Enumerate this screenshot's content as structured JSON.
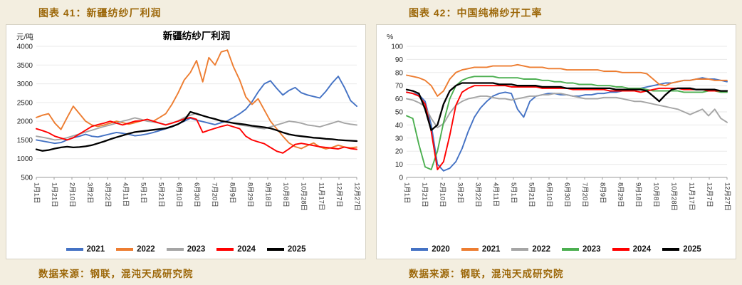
{
  "page": {
    "background": "#F3EEE0",
    "accent_text_color": "#9C6708"
  },
  "figures": [
    {
      "caption": "图表 41：新疆纺纱厂利润",
      "source": "数据来源：钢联，混沌天成研究院"
    },
    {
      "caption": "图表 42：中国纯棉纱开工率",
      "source": "数据来源：钢联，混沌天成研究院"
    }
  ],
  "chart_data": [
    {
      "type": "line",
      "title": "新疆纺纱厂利润",
      "ylabel": "元/吨",
      "ylim": [
        500,
        4000
      ],
      "ytick_step": 500,
      "grid": true,
      "legend_position": "bottom",
      "x_tick_labels": [
        "1月1日",
        "1月21日",
        "2月10日",
        "3月2日",
        "3月22日",
        "4月11日",
        "5月1日",
        "5月21日",
        "6月10日",
        "6月30日",
        "7月20日",
        "8月9日",
        "8月29日",
        "9月18日",
        "10月8日",
        "10月28日",
        "11月17日",
        "12月7日",
        "12月27日"
      ],
      "series": [
        {
          "name": "2021",
          "color": "#4472C4",
          "values": [
            1500,
            1470,
            1440,
            1410,
            1430,
            1500,
            1560,
            1600,
            1650,
            1600,
            1580,
            1620,
            1660,
            1700,
            1680,
            1650,
            1610,
            1630,
            1660,
            1700,
            1750,
            1800,
            1850,
            1920,
            2000,
            2080,
            2030,
            1990,
            1950,
            1910,
            1960,
            2010,
            2100,
            2200,
            2320,
            2520,
            2780,
            3000,
            3080,
            2880,
            2700,
            2820,
            2900,
            2760,
            2700,
            2660,
            2620,
            2800,
            3020,
            3200,
            2900,
            2550,
            2400
          ]
        },
        {
          "name": "2022",
          "color": "#ED7D31",
          "values": [
            2100,
            2160,
            2200,
            1950,
            1780,
            2100,
            2400,
            2200,
            2000,
            1900,
            1860,
            1900,
            1950,
            2000,
            1960,
            1920,
            1960,
            2010,
            2050,
            2000,
            2100,
            2200,
            2450,
            2750,
            3100,
            3300,
            3620,
            3050,
            3700,
            3500,
            3850,
            3900,
            3450,
            3100,
            2650,
            2450,
            2600,
            2300,
            2000,
            1800,
            1600,
            1420,
            1320,
            1270,
            1350,
            1420,
            1310,
            1260,
            1300,
            1360,
            1310,
            1290,
            1310
          ]
        },
        {
          "name": "2023",
          "color": "#A5A5A5",
          "values": [
            1600,
            1570,
            1540,
            1500,
            1520,
            1560,
            1610,
            1660,
            1710,
            1760,
            1810,
            1860,
            1900,
            1950,
            2000,
            2040,
            2090,
            2050,
            2000,
            1980,
            1950,
            1910,
            1950,
            2010,
            2100,
            2160,
            2210,
            2150,
            2100,
            2050,
            2000,
            1980,
            1950,
            1900,
            1880,
            1850,
            1820,
            1800,
            1850,
            1900,
            1950,
            2000,
            1980,
            1950,
            1900,
            1880,
            1850,
            1900,
            1950,
            2000,
            1950,
            1920,
            1900
          ]
        },
        {
          "name": "2024",
          "color": "#FF0000",
          "values": [
            1800,
            1750,
            1690,
            1600,
            1550,
            1500,
            1560,
            1660,
            1760,
            1860,
            1910,
            1950,
            2000,
            1950,
            1900,
            1950,
            2000,
            2010,
            2050,
            2000,
            1950,
            1900,
            1950,
            2000,
            2060,
            2100,
            2050,
            1700,
            1760,
            1810,
            1860,
            1900,
            1850,
            1800,
            1600,
            1500,
            1450,
            1400,
            1300,
            1200,
            1150,
            1260,
            1380,
            1410,
            1380,
            1350,
            1320,
            1300,
            1280,
            1260,
            1310,
            1270,
            1250
          ]
        },
        {
          "name": "2025",
          "color": "#000000",
          "values": [
            1250,
            1210,
            1230,
            1270,
            1300,
            1320,
            1300,
            1310,
            1330,
            1360,
            1410,
            1460,
            1520,
            1570,
            1620,
            1670,
            1710,
            1730,
            1750,
            1770,
            1790,
            1810,
            1860,
            1920,
            2020,
            2250,
            2200,
            2150,
            2100,
            2060,
            2010,
            1980,
            1950,
            1930,
            1910,
            1880,
            1860,
            1840,
            1810,
            1760,
            1700,
            1650,
            1620,
            1600,
            1580,
            1560,
            1550,
            1530,
            1520,
            1500,
            1490,
            1480,
            1470
          ]
        }
      ]
    },
    {
      "type": "line",
      "title": "",
      "ylabel": "%",
      "ylim": [
        0,
        100
      ],
      "ytick_step": 10,
      "grid": true,
      "legend_position": "bottom",
      "x_tick_labels": [
        "1月1日",
        "1月21日",
        "2月10日",
        "3月2日",
        "3月22日",
        "4月11日",
        "5月1日",
        "5月21日",
        "6月10日",
        "6月30日",
        "7月20日",
        "8月9日",
        "8月29日",
        "9月18日",
        "10月8日",
        "10月28日",
        "11月17日",
        "12月7日",
        "12月27日"
      ],
      "series": [
        {
          "name": "2020",
          "color": "#4472C4",
          "values": [
            65,
            64,
            63,
            58,
            40,
            10,
            5,
            7,
            12,
            22,
            35,
            46,
            53,
            58,
            62,
            64,
            65,
            64,
            52,
            46,
            58,
            62,
            63,
            64,
            64,
            63,
            63,
            62,
            62,
            63,
            63,
            64,
            64,
            65,
            65,
            66,
            67,
            68,
            68,
            69,
            70,
            71,
            72,
            72,
            73,
            74,
            74,
            75,
            76,
            75,
            75,
            74,
            73
          ]
        },
        {
          "name": "2021",
          "color": "#ED7D31",
          "values": [
            78,
            77,
            76,
            74,
            70,
            62,
            66,
            75,
            80,
            82,
            83,
            84,
            84,
            84,
            85,
            85,
            85,
            85,
            86,
            85,
            84,
            84,
            84,
            83,
            83,
            83,
            82,
            82,
            82,
            82,
            82,
            82,
            81,
            81,
            81,
            80,
            80,
            80,
            80,
            79,
            75,
            71,
            70,
            72,
            73,
            74,
            74,
            75,
            75,
            75,
            74,
            74,
            74
          ]
        },
        {
          "name": "2022",
          "color": "#A5A5A5",
          "values": [
            60,
            59,
            57,
            54,
            45,
            38,
            41,
            49,
            55,
            58,
            60,
            61,
            62,
            62,
            61,
            60,
            60,
            59,
            60,
            61,
            62,
            62,
            63,
            63,
            64,
            64,
            63,
            62,
            61,
            60,
            60,
            60,
            61,
            61,
            61,
            60,
            59,
            58,
            58,
            57,
            56,
            55,
            54,
            53,
            52,
            50,
            48,
            50,
            52,
            47,
            52,
            45,
            42
          ]
        },
        {
          "name": "2023",
          "color": "#4CAF50",
          "values": [
            47,
            45,
            25,
            8,
            6,
            20,
            42,
            60,
            70,
            74,
            76,
            77,
            77,
            77,
            77,
            76,
            76,
            76,
            76,
            75,
            75,
            75,
            74,
            74,
            73,
            73,
            72,
            72,
            71,
            71,
            71,
            70,
            70,
            70,
            69,
            69,
            68,
            68,
            68,
            67,
            66,
            66,
            66,
            66,
            66,
            65,
            65,
            65,
            65,
            66,
            66,
            65,
            65
          ]
        },
        {
          "name": "2024",
          "color": "#FF0000",
          "values": [
            65,
            64,
            62,
            56,
            35,
            6,
            12,
            32,
            55,
            65,
            68,
            70,
            70,
            70,
            70,
            70,
            70,
            69,
            69,
            69,
            69,
            69,
            68,
            68,
            68,
            68,
            68,
            67,
            67,
            67,
            67,
            67,
            67,
            66,
            66,
            66,
            66,
            66,
            65,
            66,
            67,
            68,
            68,
            68,
            68,
            67,
            67,
            67,
            67,
            66,
            66,
            66,
            66
          ]
        },
        {
          "name": "2025",
          "color": "#000000",
          "values": [
            67,
            66,
            64,
            52,
            36,
            40,
            56,
            66,
            70,
            72,
            72,
            72,
            72,
            72,
            72,
            71,
            71,
            71,
            70,
            70,
            70,
            70,
            69,
            69,
            69,
            69,
            68,
            68,
            68,
            68,
            68,
            68,
            68,
            68,
            67,
            67,
            67,
            67,
            67,
            66,
            62,
            58,
            63,
            67,
            68,
            68,
            68,
            67,
            67,
            67,
            67,
            66,
            66
          ]
        }
      ]
    }
  ]
}
